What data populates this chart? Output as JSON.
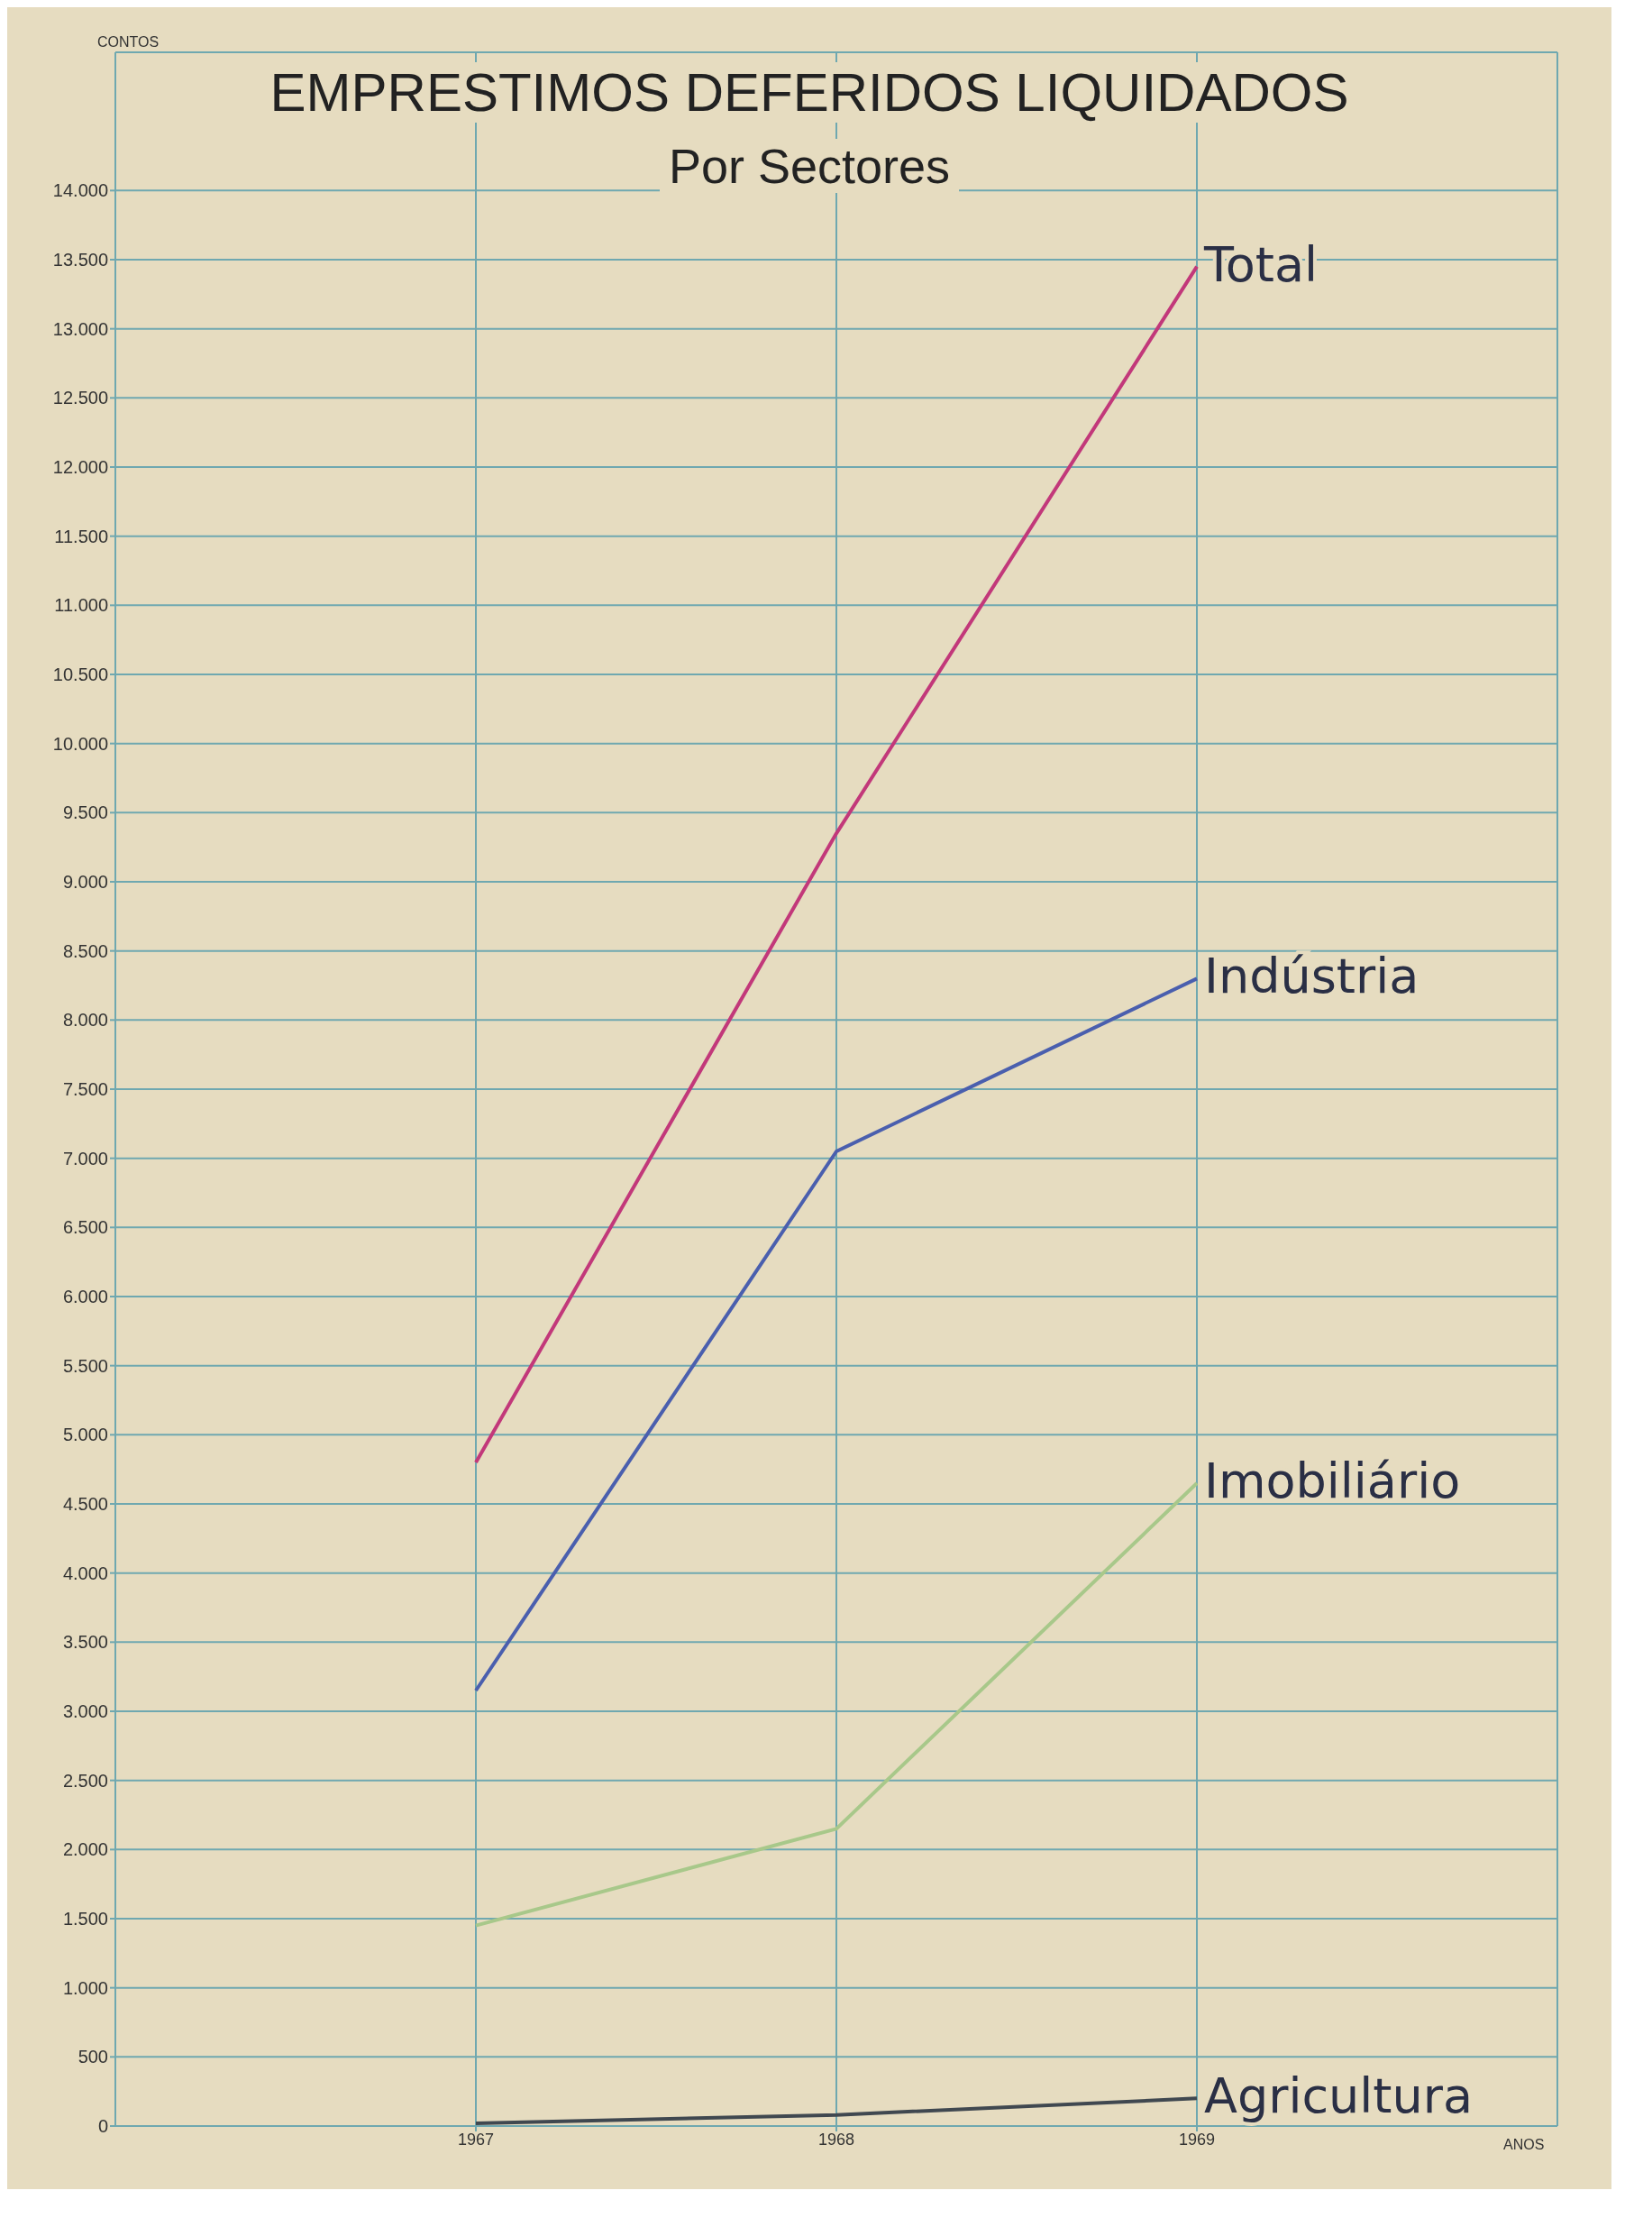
{
  "chart_data": {
    "type": "line",
    "title": "EMPRESTIMOS DEFERIDOS LIQUIDADOS",
    "subtitle": "Por Sectores",
    "ylabel": "CONTOS",
    "xlabel": "ANOS",
    "x": [
      1967,
      1968,
      1969
    ],
    "xlim": [
      1966,
      1970
    ],
    "xticks": [
      1967,
      1968,
      1969
    ],
    "ylim": [
      0,
      15000
    ],
    "yticks": [
      0,
      500,
      {
        "value": 1000,
        "label": "1.000"
      },
      {
        "value": 1500,
        "label": "1.500"
      },
      {
        "value": 2000,
        "label": "2.000"
      },
      {
        "value": 2500,
        "label": "2.500"
      },
      {
        "value": 3000,
        "label": "3.000"
      },
      {
        "value": 3500,
        "label": "3.500"
      },
      {
        "value": 4000,
        "label": "4.000"
      },
      {
        "value": 4500,
        "label": "4.500"
      },
      {
        "value": 5000,
        "label": "5.000"
      },
      {
        "value": 5500,
        "label": "5.500"
      },
      {
        "value": 6000,
        "label": "6.000"
      },
      {
        "value": 6500,
        "label": "6.500"
      },
      {
        "value": 7000,
        "label": "7.000"
      },
      {
        "value": 7500,
        "label": "7.500"
      },
      {
        "value": 8000,
        "label": "8.000"
      },
      {
        "value": 8500,
        "label": "8.500"
      },
      {
        "value": 9000,
        "label": "9.000"
      },
      {
        "value": 9500,
        "label": "9.500"
      },
      {
        "value": 10000,
        "label": "10.000"
      },
      {
        "value": 10500,
        "label": "10.500"
      },
      {
        "value": 11000,
        "label": "11.000"
      },
      {
        "value": 11500,
        "label": "11.500"
      },
      {
        "value": 12000,
        "label": "12.000"
      },
      {
        "value": 12500,
        "label": "12.500"
      },
      {
        "value": 13000,
        "label": "13.000"
      },
      {
        "value": 13500,
        "label": "13.500"
      },
      {
        "value": 14000,
        "label": "14.000"
      }
    ],
    "grid": true,
    "marker": "none",
    "line_style": "solid",
    "series": [
      {
        "name": "Total",
        "color": "#c2387a",
        "values": [
          4800,
          9350,
          13450
        ]
      },
      {
        "name": "Indústria",
        "color": "#4a5fae",
        "values": [
          3150,
          7050,
          8300
        ]
      },
      {
        "name": "Imobiliário",
        "color": "#a8c88a",
        "values": [
          1450,
          2150,
          4650
        ]
      },
      {
        "name": "Agricultura",
        "color": "#404850",
        "values": [
          20,
          80,
          200
        ]
      }
    ]
  }
}
